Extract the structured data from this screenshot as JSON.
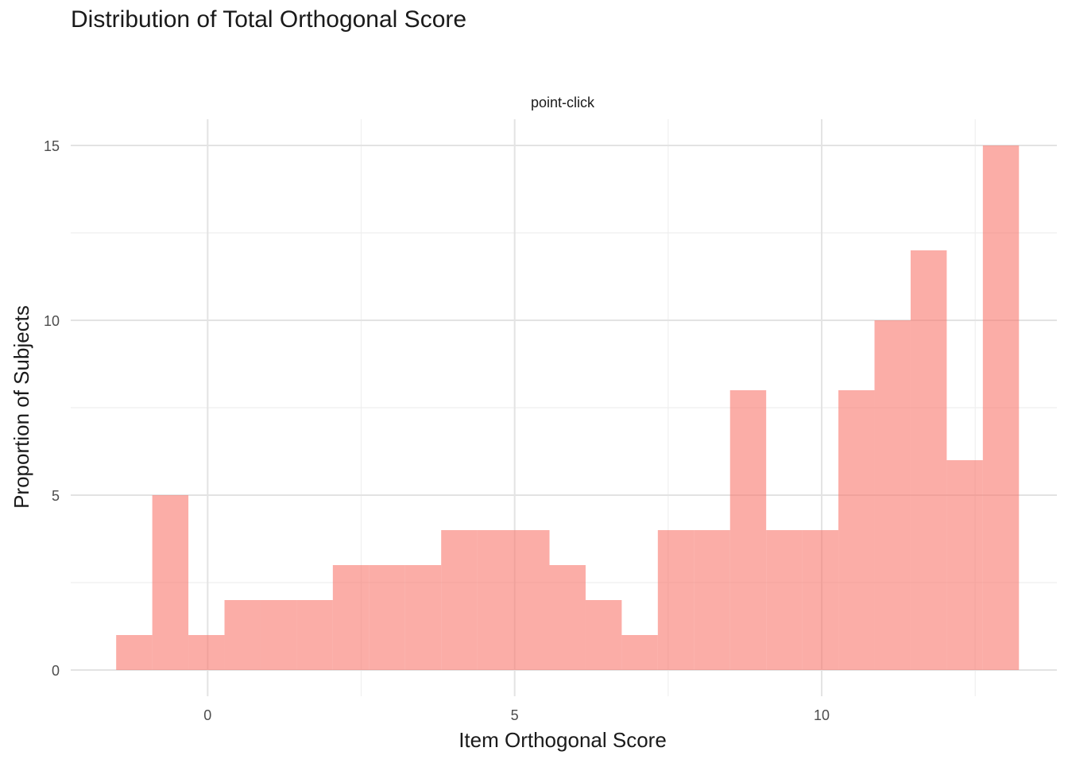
{
  "chart_data": {
    "type": "bar",
    "subtype": "histogram",
    "title": "Distribution of Total Orthogonal Score",
    "facet": "point-click",
    "xlabel": "Item Orthogonal Score",
    "ylabel": "Proportion of Subjects",
    "xlim": [
      -2.23,
      13.83
    ],
    "ylim": [
      -0.75,
      15.75
    ],
    "xticks": [
      0,
      5,
      10
    ],
    "yticks": [
      0,
      5,
      10,
      15
    ],
    "xminor": [
      -2.5,
      2.5,
      7.5,
      12.5
    ],
    "yminor": [
      2.5,
      7.5,
      12.5
    ],
    "bin_start": -1.49,
    "bin_width": 0.5881,
    "values": [
      1,
      5,
      1,
      2,
      2,
      2,
      3,
      3,
      3,
      4,
      4,
      4,
      3,
      2,
      1,
      4,
      4,
      8,
      4,
      4,
      8,
      10,
      12,
      6,
      15
    ],
    "bar_color": "#F8766D",
    "bar_opacity": 0.6
  }
}
